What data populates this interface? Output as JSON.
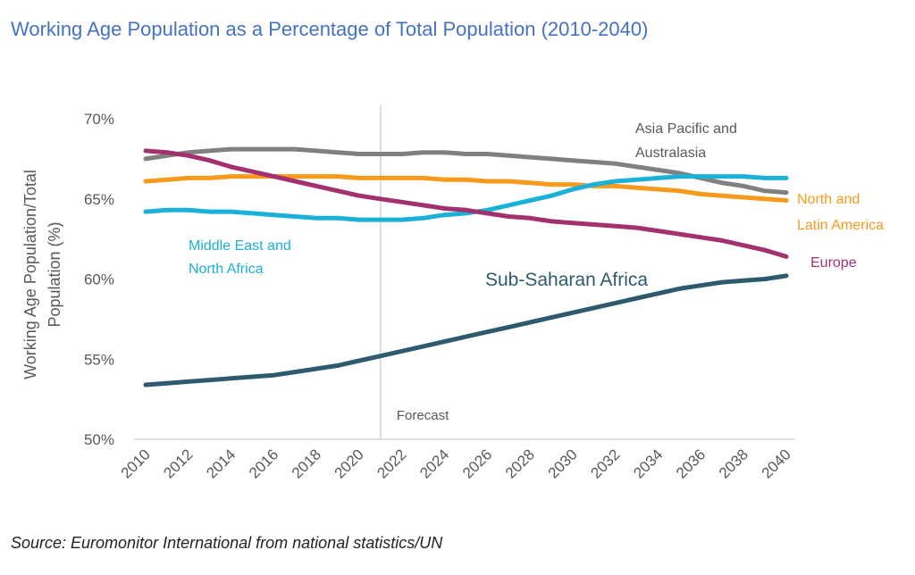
{
  "chart_data": {
    "type": "line",
    "title": "Working Age Population as a Percentage of Total Population (2010-2040)",
    "ylabel": "Working Age Population/Total Population (%)",
    "ylabel_lines": [
      "Working Age Population/Total",
      "Population (%)"
    ],
    "xlabel": "",
    "ylim": [
      50,
      70
    ],
    "yticks": [
      50,
      55,
      60,
      65,
      70
    ],
    "ytick_labels": [
      "50%",
      "55%",
      "60%",
      "65%",
      "70%"
    ],
    "x": [
      2010,
      2011,
      2012,
      2013,
      2014,
      2015,
      2016,
      2017,
      2018,
      2019,
      2020,
      2021,
      2022,
      2023,
      2024,
      2025,
      2026,
      2027,
      2028,
      2029,
      2030,
      2031,
      2032,
      2033,
      2034,
      2035,
      2036,
      2037,
      2038,
      2039,
      2040
    ],
    "xtick_labels": [
      "2010",
      "2012",
      "2014",
      "2016",
      "2018",
      "2020",
      "2022",
      "2024",
      "2026",
      "2028",
      "2030",
      "2032",
      "2034",
      "2036",
      "2038",
      "2040"
    ],
    "forecast_year": 2021,
    "forecast_label": "Forecast",
    "series": [
      {
        "name": "Asia Pacific and Australasia",
        "label_lines": [
          "Asia Pacific and",
          "Australasia"
        ],
        "color": "#808080",
        "values": [
          67.5,
          67.7,
          67.9,
          68.0,
          68.1,
          68.1,
          68.1,
          68.1,
          68.0,
          67.9,
          67.8,
          67.8,
          67.8,
          67.9,
          67.9,
          67.8,
          67.8,
          67.7,
          67.6,
          67.5,
          67.4,
          67.3,
          67.2,
          67.0,
          66.8,
          66.6,
          66.3,
          66.0,
          65.8,
          65.5,
          65.4
        ]
      },
      {
        "name": "North and Latin America",
        "label_lines": [
          "North and",
          "Latin America"
        ],
        "color": "#f79a1c",
        "values": [
          66.1,
          66.2,
          66.3,
          66.3,
          66.4,
          66.4,
          66.4,
          66.4,
          66.4,
          66.4,
          66.3,
          66.3,
          66.3,
          66.3,
          66.2,
          66.2,
          66.1,
          66.1,
          66.0,
          65.9,
          65.9,
          65.8,
          65.8,
          65.7,
          65.6,
          65.5,
          65.3,
          65.2,
          65.1,
          65.0,
          64.9
        ]
      },
      {
        "name": "Middle East and North Africa",
        "label_lines": [
          "Middle East and",
          "North Africa"
        ],
        "color": "#1bb0d8",
        "values": [
          64.2,
          64.3,
          64.3,
          64.2,
          64.2,
          64.1,
          64.0,
          63.9,
          63.8,
          63.8,
          63.7,
          63.7,
          63.7,
          63.8,
          64.0,
          64.1,
          64.3,
          64.6,
          64.9,
          65.2,
          65.6,
          65.9,
          66.1,
          66.2,
          66.3,
          66.4,
          66.4,
          66.4,
          66.4,
          66.3,
          66.3
        ]
      },
      {
        "name": "Europe",
        "label_lines": [
          "Europe"
        ],
        "color": "#a3306f",
        "values": [
          68.0,
          67.9,
          67.7,
          67.4,
          67.0,
          66.7,
          66.4,
          66.1,
          65.8,
          65.5,
          65.2,
          65.0,
          64.8,
          64.6,
          64.4,
          64.3,
          64.1,
          63.9,
          63.8,
          63.6,
          63.5,
          63.4,
          63.3,
          63.2,
          63.0,
          62.8,
          62.6,
          62.4,
          62.1,
          61.8,
          61.4
        ]
      },
      {
        "name": "Sub-Saharan Africa",
        "label_lines": [
          "Sub-Saharan Africa"
        ],
        "color": "#2e5a6e",
        "values": [
          53.4,
          53.5,
          53.6,
          53.7,
          53.8,
          53.9,
          54.0,
          54.2,
          54.4,
          54.6,
          54.9,
          55.2,
          55.5,
          55.8,
          56.1,
          56.4,
          56.7,
          57.0,
          57.3,
          57.6,
          57.9,
          58.2,
          58.5,
          58.8,
          59.1,
          59.4,
          59.6,
          59.8,
          59.9,
          60.0,
          60.2
        ]
      }
    ]
  },
  "source": "Source: Euromonitor International from national statistics/UN"
}
